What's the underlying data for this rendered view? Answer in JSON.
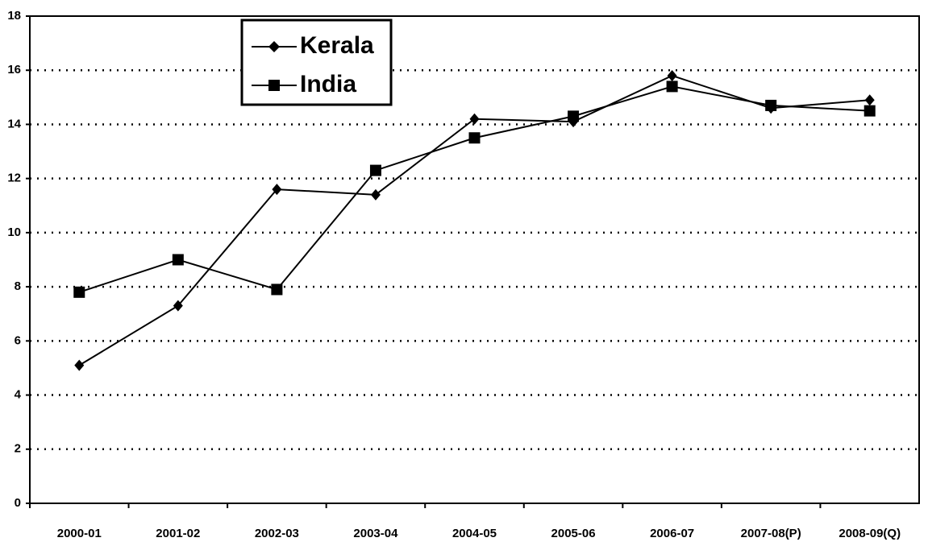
{
  "chart_data": {
    "type": "line",
    "categories": [
      "2000-01",
      "2001-02",
      "2002-03",
      "2003-04",
      "2004-05",
      "2005-06",
      "2006-07",
      "2007-08(P)",
      "2008-09(Q)"
    ],
    "series": [
      {
        "name": "Kerala",
        "color": "#000000",
        "marker": "diamond",
        "values": [
          5.1,
          7.3,
          11.6,
          11.4,
          14.2,
          14.1,
          15.8,
          14.6,
          14.9
        ]
      },
      {
        "name": "India",
        "color": "#000000",
        "marker": "square",
        "values": [
          7.8,
          9.0,
          7.9,
          12.3,
          13.5,
          14.3,
          15.4,
          14.7,
          14.5
        ]
      }
    ],
    "ylim": [
      0,
      18
    ],
    "yticks": [
      0,
      2,
      4,
      6,
      8,
      10,
      12,
      14,
      16,
      18
    ],
    "grid": true,
    "legend": "top-left"
  }
}
